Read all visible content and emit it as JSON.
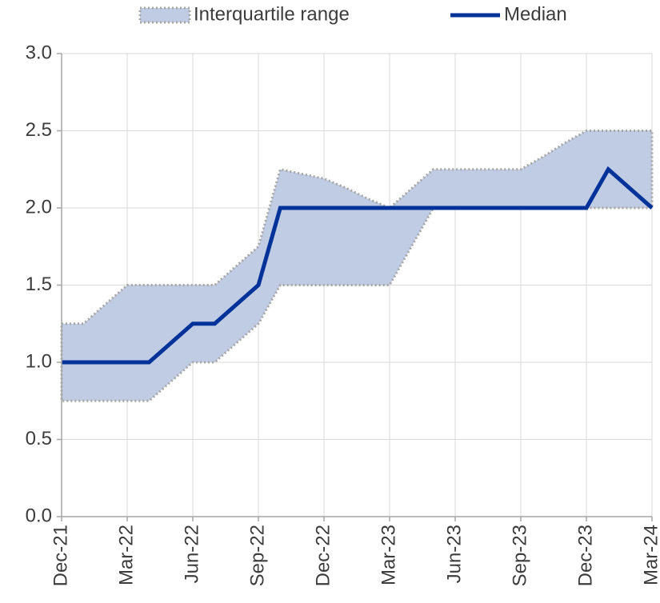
{
  "chart_data": {
    "type": "line",
    "categories": [
      "Dec-21",
      null,
      null,
      "Mar-22",
      null,
      null,
      "Jun-22",
      null,
      null,
      "Sep-22",
      null,
      null,
      "Dec-22",
      null,
      null,
      "Mar-23",
      null,
      null,
      "Jun-23",
      null,
      null,
      "Sep-23",
      null,
      null,
      "Dec-23",
      null,
      null,
      "Mar-24"
    ],
    "series": [
      {
        "name": "Interquartile range",
        "color": "#c0cbe4",
        "border": "#a6a6a6",
        "upper": [
          1.25,
          1.25,
          1.375,
          1.5,
          1.5,
          1.5,
          1.5,
          1.5,
          1.625,
          1.75,
          2.25,
          2.22,
          2.19,
          2.13,
          2.06,
          2.0,
          2.125,
          2.25,
          2.25,
          2.25,
          2.25,
          2.25,
          2.33,
          2.42,
          2.5,
          2.5,
          2.5,
          2.5
        ],
        "lower": [
          0.75,
          0.75,
          0.75,
          0.75,
          0.75,
          0.875,
          1.0,
          1.0,
          1.125,
          1.25,
          1.5,
          1.5,
          1.5,
          1.5,
          1.5,
          1.5,
          1.75,
          2.0,
          2.0,
          2.0,
          2.0,
          2.0,
          2.0,
          2.0,
          2.0,
          2.0,
          2.0,
          2.0
        ]
      },
      {
        "name": "Median",
        "color": "#003299",
        "values": [
          1.0,
          1.0,
          1.0,
          1.0,
          1.0,
          1.125,
          1.25,
          1.25,
          1.375,
          1.5,
          2.0,
          2.0,
          2.0,
          2.0,
          2.0,
          2.0,
          2.0,
          2.0,
          2.0,
          2.0,
          2.0,
          2.0,
          2.0,
          2.0,
          2.0,
          2.25,
          2.125,
          2.0
        ]
      }
    ],
    "ylim": [
      0,
      3
    ],
    "yticks": [
      {
        "value": 0,
        "label": "0.0"
      },
      0.5,
      {
        "value": 1,
        "label": "1.0"
      },
      1.5,
      {
        "value": 2,
        "label": "2.0"
      },
      2.5,
      {
        "value": 3,
        "label": "3.0"
      }
    ],
    "grid": true,
    "legend": "top"
  }
}
